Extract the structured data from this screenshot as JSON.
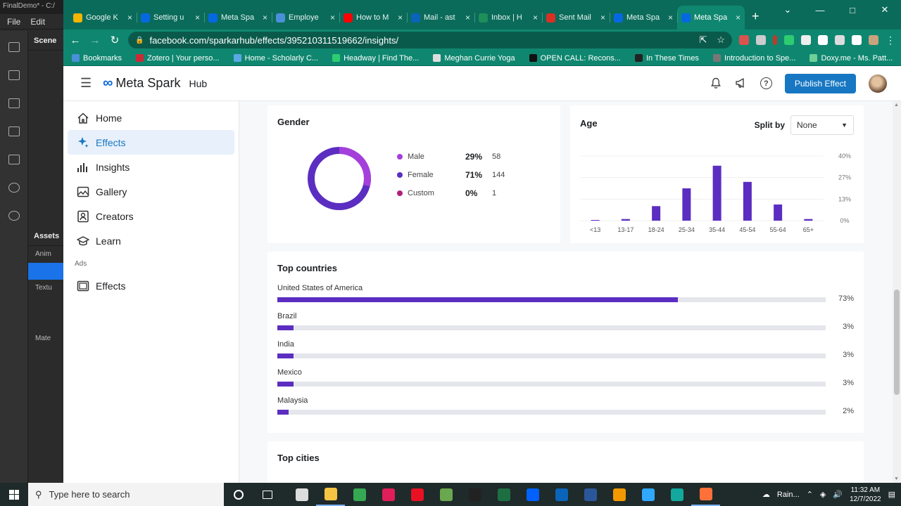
{
  "bg_app": {
    "title": "FinalDemo* - C:/",
    "menu": [
      "File",
      "Edit"
    ],
    "scene_label": "Scene",
    "assets_label": "Assets",
    "rows": [
      "Anim",
      "Textu",
      "Mate"
    ]
  },
  "browser": {
    "tabs": [
      {
        "label": "Google K",
        "color": "#f4b400"
      },
      {
        "label": "Setting u",
        "color": "#0668e1"
      },
      {
        "label": "Meta Spa",
        "color": "#0668e1"
      },
      {
        "label": "Employe",
        "color": "#4a90d9"
      },
      {
        "label": "How to M",
        "color": "#ff0000"
      },
      {
        "label": "Mail - ast",
        "color": "#0a64b9"
      },
      {
        "label": "Inbox | H",
        "color": "#1e8e5a"
      },
      {
        "label": "Sent Mail",
        "color": "#d93025"
      },
      {
        "label": "Meta Spa",
        "color": "#0668e1"
      },
      {
        "label": "Meta Spa",
        "color": "#0668e1",
        "active": true
      }
    ],
    "url": "facebook.com/sparkarhub/effects/395210311519662/insights/",
    "bookmarks": [
      {
        "label": "Bookmarks",
        "color": "#4a90d9"
      },
      {
        "label": "Zotero | Your perso...",
        "color": "#cc2936"
      },
      {
        "label": "Home - Scholarly C...",
        "color": "#5aa9e6"
      },
      {
        "label": "Headway | Find The...",
        "color": "#2ecc71"
      },
      {
        "label": "Meghan Currie Yoga",
        "color": "#dddddd"
      },
      {
        "label": "OPEN CALL: Recons...",
        "color": "#111111"
      },
      {
        "label": "In These Times",
        "color": "#222222"
      },
      {
        "label": "Introduction to Spe...",
        "color": "#777777"
      },
      {
        "label": "Doxy.me - Ms. Patt...",
        "color": "#6fcf97"
      }
    ]
  },
  "header": {
    "brand": "Meta Spark",
    "hub": "Hub",
    "publish_label": "Publish Effect"
  },
  "sidenav": {
    "items": [
      {
        "label": "Home",
        "icon": "home-icon"
      },
      {
        "label": "Effects",
        "icon": "sparkle-icon",
        "active": true
      },
      {
        "label": "Insights",
        "icon": "bar-chart-icon"
      },
      {
        "label": "Gallery",
        "icon": "gallery-icon"
      },
      {
        "label": "Creators",
        "icon": "creators-icon"
      },
      {
        "label": "Learn",
        "icon": "learn-icon"
      }
    ],
    "section_label": "Ads",
    "ads_items": [
      {
        "label": "Effects",
        "icon": "ads-effects-icon"
      }
    ]
  },
  "gender": {
    "title": "Gender",
    "rows": [
      {
        "name": "Male",
        "pct": "29%",
        "count": "58",
        "color": "#a43fdc"
      },
      {
        "name": "Female",
        "pct": "71%",
        "count": "144",
        "color": "#5b2ec1"
      },
      {
        "name": "Custom",
        "pct": "0%",
        "count": "1",
        "color": "#b0207a"
      }
    ]
  },
  "age": {
    "title": "Age",
    "split_label": "Split by",
    "split_value": "None"
  },
  "chart_data": {
    "type": "bar",
    "title": "Age",
    "categories": [
      "<13",
      "13-17",
      "18-24",
      "25-34",
      "35-44",
      "45-54",
      "55-64",
      "65+"
    ],
    "values": [
      0.3,
      1,
      9,
      20,
      34,
      24,
      10,
      1
    ],
    "ytick_labels": [
      "40%",
      "27%",
      "13%",
      "0%"
    ],
    "ylim": [
      0,
      40
    ],
    "color": "#5b2ec1"
  },
  "countries": {
    "title": "Top countries",
    "items": [
      {
        "name": "United States of America",
        "pct": "73%",
        "value": 73
      },
      {
        "name": "Brazil",
        "pct": "3%",
        "value": 3
      },
      {
        "name": "India",
        "pct": "3%",
        "value": 3
      },
      {
        "name": "Mexico",
        "pct": "3%",
        "value": 3
      },
      {
        "name": "Malaysia",
        "pct": "2%",
        "value": 2
      }
    ]
  },
  "cities": {
    "title": "Top cities"
  },
  "taskbar": {
    "search_placeholder": "Type here to search",
    "weather": "Rain...",
    "time": "11:32 AM",
    "date": "12/7/2022",
    "apps": [
      "#dddddd",
      "#f4c542",
      "#34a853",
      "#e01e5a",
      "#e81123",
      "#6aa84f",
      "#222222",
      "#1d6f42",
      "#0061fe",
      "#0a64b9",
      "#2b579a",
      "#f29900",
      "#31a8ff",
      "#13a89e",
      "#ff7139"
    ]
  }
}
